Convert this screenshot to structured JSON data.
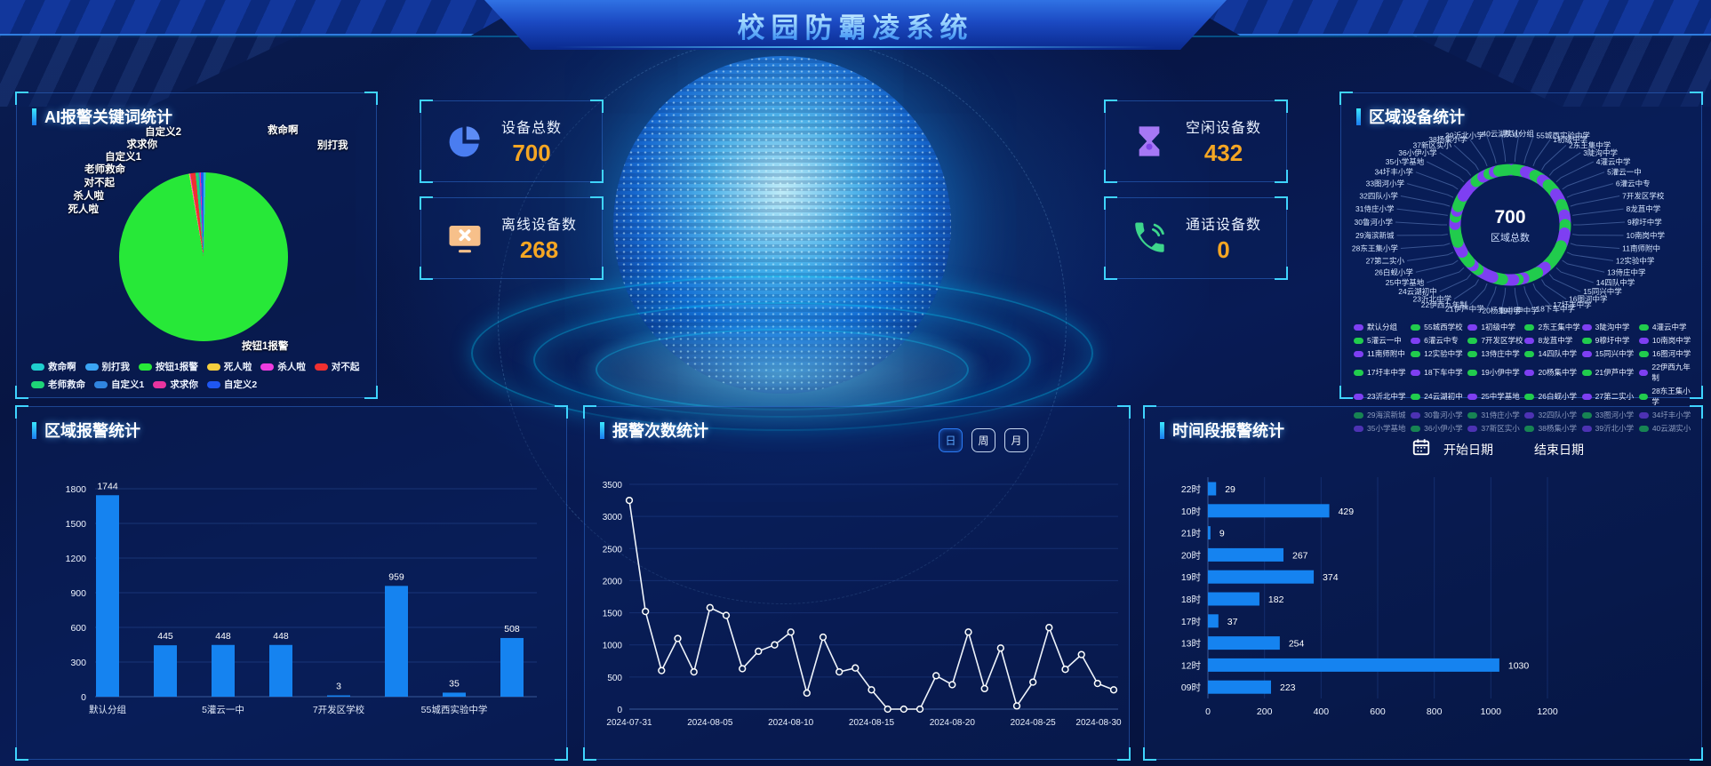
{
  "header": {
    "title": "校园防霸凌系统"
  },
  "stats": [
    {
      "label": "设备总数",
      "value": "700",
      "icon": "pie-chart-icon",
      "color": "#4a7df0"
    },
    {
      "label": "离线设备数",
      "value": "268",
      "icon": "monitor-off-icon",
      "color": "#f7c08a"
    },
    {
      "label": "空闲设备数",
      "value": "432",
      "icon": "hourglass-icon",
      "color": "#a678f5"
    },
    {
      "label": "通话设备数",
      "value": "0",
      "icon": "phone-icon",
      "color": "#3dd68c"
    }
  ],
  "keyword_panel": {
    "title": "AI报警关键词统计",
    "callouts": [
      "自定义2",
      "救命啊",
      "别打我",
      "求求你",
      "自定义1",
      "老师救命",
      "对不起",
      "杀人啦",
      "死人啦",
      "按钮1报警"
    ],
    "legend": [
      {
        "label": "救命啊",
        "color": "#1fcfcf"
      },
      {
        "label": "别打我",
        "color": "#3aa5f5"
      },
      {
        "label": "按钮1报警",
        "color": "#27e838"
      },
      {
        "label": "死人啦",
        "color": "#f5ce3e"
      },
      {
        "label": "杀人啦",
        "color": "#ee3cdf"
      },
      {
        "label": "对不起",
        "color": "#f03030"
      },
      {
        "label": "老师救命",
        "color": "#1ed477"
      },
      {
        "label": "自定义1",
        "color": "#3085e0"
      },
      {
        "label": "求求你",
        "color": "#e8349f"
      },
      {
        "label": "自定义2",
        "color": "#1f57f2"
      }
    ],
    "pie_slices": [
      {
        "name": "救命啊",
        "color": "#1fcfcf",
        "deg": 0.9
      },
      {
        "name": "别打我",
        "color": "#3aa5f5",
        "deg": 0.6
      },
      {
        "name": "按钮1报警",
        "color": "#27e838",
        "deg": 348.5
      },
      {
        "name": "死人啦",
        "color": "#f5ce3e",
        "deg": 0.5
      },
      {
        "name": "杀人啦",
        "color": "#ee3cdf",
        "deg": 0.5
      },
      {
        "name": "对不起",
        "color": "#f03030",
        "deg": 3.5
      },
      {
        "name": "老师救命",
        "color": "#1ed477",
        "deg": 2.0
      },
      {
        "name": "自定义1",
        "color": "#3085e0",
        "deg": 0.8
      },
      {
        "name": "求求你",
        "color": "#e8349f",
        "deg": 0.8
      },
      {
        "name": "自定义2",
        "color": "#1f57f2",
        "deg": 1.9
      }
    ]
  },
  "region_device_panel": {
    "title": "区域设备统计",
    "center_value": "700",
    "center_label": "区域总数",
    "green": "#21cc4d",
    "purple": "#7e3ff2",
    "callouts": [
      "默认分组",
      "55城西实验中学",
      "1初级中学",
      "2东王集中学",
      "3陡沟中学",
      "4灌云中学",
      "5灌云一中",
      "6灌云中专",
      "7开发区学校",
      "8龙苴中学",
      "9穆圩中学",
      "10南岗中学",
      "11南师附中",
      "12实验中学",
      "13侍庄中学",
      "14四队中学",
      "15同兴中学",
      "16图河中学",
      "17圩丰中学",
      "18下车中学",
      "19小伊中学",
      "20杨集中学",
      "21伊芦中学",
      "22伊西九年制",
      "23沂北中学",
      "24云湖初中",
      "25中学基地",
      "26白蚬小学",
      "27第二实小",
      "28东王集小学",
      "29海滨新城",
      "30鲁河小学",
      "31侍庄小学",
      "32四队小学",
      "33图河小学",
      "34圩丰小学",
      "35小学基地",
      "36小伊小学",
      "37新区实小",
      "38杨集小学",
      "39沂北小学",
      "40云湖实小"
    ],
    "legend": [
      {
        "label": "默认分组",
        "c": "p"
      },
      {
        "label": "55城西学校",
        "c": "g"
      },
      {
        "label": "1初级中学",
        "c": "p"
      },
      {
        "label": "2东王集中学",
        "c": "g"
      },
      {
        "label": "3陡沟中学",
        "c": "p"
      },
      {
        "label": "4灌云中学",
        "c": "g"
      },
      {
        "label": "5灌云一中",
        "c": "g"
      },
      {
        "label": "6灌云中专",
        "c": "p"
      },
      {
        "label": "7开发区学校",
        "c": "g"
      },
      {
        "label": "8龙苴中学",
        "c": "p"
      },
      {
        "label": "9穆圩中学",
        "c": "g"
      },
      {
        "label": "10南岗中学",
        "c": "p"
      },
      {
        "label": "11南师附中",
        "c": "p"
      },
      {
        "label": "12实验中学",
        "c": "g"
      },
      {
        "label": "13侍庄中学",
        "c": "g"
      },
      {
        "label": "14四队中学",
        "c": "g"
      },
      {
        "label": "15同兴中学",
        "c": "p"
      },
      {
        "label": "16图河中学",
        "c": "g"
      },
      {
        "label": "17圩丰中学",
        "c": "g"
      },
      {
        "label": "18下车中学",
        "c": "p"
      },
      {
        "label": "19小伊中学",
        "c": "g"
      },
      {
        "label": "20杨集中学",
        "c": "p"
      },
      {
        "label": "21伊芦中学",
        "c": "g"
      },
      {
        "label": "22伊西九年制",
        "c": "p"
      },
      {
        "label": "23沂北中学",
        "c": "p"
      },
      {
        "label": "24云湖初中",
        "c": "g"
      },
      {
        "label": "25中学基地",
        "c": "p"
      },
      {
        "label": "26白蚬小学",
        "c": "g"
      },
      {
        "label": "27第二实小",
        "c": "p"
      },
      {
        "label": "28东王集小学",
        "c": "g"
      },
      {
        "label": "29海滨新城",
        "c": "g"
      },
      {
        "label": "30鲁河小学",
        "c": "p"
      },
      {
        "label": "31侍庄小学",
        "c": "g"
      },
      {
        "label": "32四队小学",
        "c": "p"
      },
      {
        "label": "33图河小学",
        "c": "g"
      },
      {
        "label": "34圩丰小学",
        "c": "p"
      },
      {
        "label": "35小学基地",
        "c": "p"
      },
      {
        "label": "36小伊小学",
        "c": "g"
      },
      {
        "label": "37新区实小",
        "c": "p"
      },
      {
        "label": "38杨集小学",
        "c": "g"
      },
      {
        "label": "39沂北小学",
        "c": "p"
      },
      {
        "label": "40云湖实小",
        "c": "g"
      }
    ]
  },
  "region_alarm_panel": {
    "title": "区域报警统计",
    "values": [
      1744,
      445,
      448,
      448,
      3,
      959,
      35,
      508
    ],
    "x_labels": [
      "默认分组",
      "5灌云一中",
      "7开发区学校",
      "55城西实验中学"
    ],
    "y_ticks": [
      0,
      300,
      600,
      900,
      1200,
      1500,
      1800
    ],
    "bar_color": "#1583f0"
  },
  "alarm_count_panel": {
    "title": "报警次数统计",
    "buttons": [
      "日",
      "周",
      "月"
    ],
    "x_tick_labels": [
      "2024-07-31",
      "2024-08-05",
      "2024-08-10",
      "2024-08-15",
      "2024-08-20",
      "2024-08-25",
      "2024-08-30"
    ],
    "values": [
      3250,
      1520,
      600,
      1100,
      580,
      1580,
      1460,
      630,
      900,
      1000,
      1200,
      250,
      1120,
      580,
      640,
      300,
      0,
      0,
      0,
      520,
      380,
      1200,
      320,
      950,
      50,
      420,
      1270,
      620,
      850,
      400,
      300
    ],
    "y_ticks": [
      0,
      500,
      1000,
      1500,
      2000,
      2500,
      3000,
      3500
    ]
  },
  "time_alarm_panel": {
    "title": "时间段报警统计",
    "start_label": "开始日期",
    "end_label": "结束日期",
    "categories": [
      "22时",
      "10时",
      "21时",
      "20时",
      "19时",
      "18时",
      "17时",
      "13时",
      "12时",
      "09时"
    ],
    "values": [
      29,
      429,
      9,
      267,
      374,
      182,
      37,
      254,
      1030,
      223
    ],
    "x_ticks": [
      0,
      200,
      400,
      600,
      800,
      1000,
      1200
    ],
    "bar_color": "#1583f0"
  },
  "chart_data": [
    {
      "type": "pie",
      "title": "AI报警关键词统计",
      "labels": [
        "按钮1报警",
        "对不起",
        "老师救命",
        "自定义2",
        "救命啊",
        "求求你",
        "自定义1",
        "别打我",
        "死人啦",
        "杀人啦"
      ],
      "values_pct_estimated": [
        96.8,
        1.0,
        0.6,
        0.5,
        0.25,
        0.22,
        0.22,
        0.17,
        0.14,
        0.14
      ]
    },
    {
      "type": "pie",
      "title": "区域设备统计 (donut)",
      "center_total": 700,
      "center_label": "区域总数",
      "labels": [
        "默认分组",
        "55城西实验中学",
        "1初级中学",
        "2东王集中学",
        "3陡沟中学",
        "4灌云中学",
        "5灌云一中",
        "6灌云中专",
        "7开发区学校",
        "8龙苴中学",
        "9穆圩中学",
        "10南岗中学",
        "11南师附中",
        "12实验中学",
        "13侍庄中学",
        "14四队中学",
        "15同兴中学",
        "16图河中学",
        "17圩丰中学",
        "18下车中学",
        "19小伊中学",
        "20杨集中学",
        "21伊芦中学",
        "22伊西九年制",
        "23沂北中学",
        "24云湖初中",
        "25中学基地",
        "26白蚬小学",
        "27第二实小",
        "28东王集小学",
        "29海滨新城",
        "30鲁河小学",
        "31侍庄小学",
        "32四队小学",
        "33图河小学",
        "34圩丰小学",
        "35小学基地",
        "36小伊小学",
        "37新区实小",
        "38杨集小学",
        "39沂北小学",
        "40云湖实小"
      ]
    },
    {
      "type": "bar",
      "title": "区域报警统计",
      "categories": [
        "默认分组",
        "",
        "5灌云一中",
        "",
        "7开发区学校",
        "",
        "55城西实验中学",
        ""
      ],
      "values": [
        1744,
        445,
        448,
        448,
        3,
        959,
        35,
        508
      ],
      "ylim": [
        0,
        1800
      ]
    },
    {
      "type": "line",
      "title": "报警次数统计",
      "x": [
        "2024-07-31",
        "2024-08-01",
        "2024-08-02",
        "2024-08-03",
        "2024-08-04",
        "2024-08-05",
        "2024-08-06",
        "2024-08-07",
        "2024-08-08",
        "2024-08-09",
        "2024-08-10",
        "2024-08-11",
        "2024-08-12",
        "2024-08-13",
        "2024-08-14",
        "2024-08-15",
        "2024-08-16",
        "2024-08-17",
        "2024-08-18",
        "2024-08-19",
        "2024-08-20",
        "2024-08-21",
        "2024-08-22",
        "2024-08-23",
        "2024-08-24",
        "2024-08-25",
        "2024-08-26",
        "2024-08-27",
        "2024-08-28",
        "2024-08-29",
        "2024-08-30"
      ],
      "values": [
        3250,
        1520,
        600,
        1100,
        580,
        1580,
        1460,
        630,
        900,
        1000,
        1200,
        250,
        1120,
        580,
        640,
        300,
        0,
        0,
        0,
        520,
        380,
        1200,
        320,
        950,
        50,
        420,
        1270,
        620,
        850,
        400,
        300
      ],
      "ylim": [
        0,
        3500
      ]
    },
    {
      "type": "bar",
      "title": "时间段报警统计",
      "orientation": "horizontal",
      "categories": [
        "22时",
        "10时",
        "21时",
        "20时",
        "19时",
        "18时",
        "17时",
        "13时",
        "12时",
        "09时"
      ],
      "values": [
        29,
        429,
        9,
        267,
        374,
        182,
        37,
        254,
        1030,
        223
      ],
      "xlim": [
        0,
        1200
      ]
    }
  ]
}
